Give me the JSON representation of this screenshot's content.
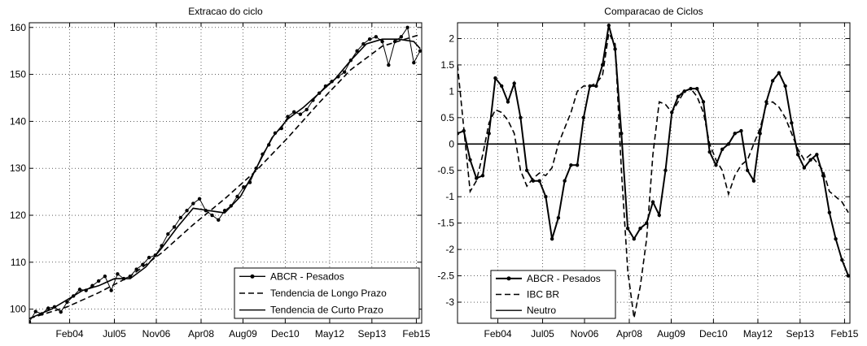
{
  "chart_data": [
    {
      "type": "line",
      "title": "Extracao do ciclo",
      "xlabel": "",
      "ylabel": "",
      "xlim": [
        2002.8,
        2015.25
      ],
      "ylim": [
        97,
        161
      ],
      "grid": true,
      "legend_position": "bottom-right",
      "x_ticks": [
        {
          "x": 2004.08,
          "label": "Feb04"
        },
        {
          "x": 2005.5,
          "label": "Jul05"
        },
        {
          "x": 2006.83,
          "label": "Nov06"
        },
        {
          "x": 2008.25,
          "label": "Apr08"
        },
        {
          "x": 2009.58,
          "label": "Aug09"
        },
        {
          "x": 2010.92,
          "label": "Dec10"
        },
        {
          "x": 2012.33,
          "label": "May12"
        },
        {
          "x": 2013.67,
          "label": "Sep13"
        },
        {
          "x": 2015.08,
          "label": "Feb15"
        }
      ],
      "y_ticks": [
        100,
        110,
        120,
        130,
        140,
        150,
        160
      ],
      "series": [
        {
          "name": "ABCR - Pesados",
          "style": "solid-dots",
          "x": [
            2002.8,
            2003.0,
            2003.2,
            2003.4,
            2003.6,
            2003.8,
            2004.0,
            2004.2,
            2004.4,
            2004.6,
            2004.8,
            2005.0,
            2005.2,
            2005.4,
            2005.6,
            2005.8,
            2006.0,
            2006.2,
            2006.4,
            2006.6,
            2006.8,
            2007.0,
            2007.2,
            2007.4,
            2007.6,
            2007.8,
            2008.0,
            2008.2,
            2008.4,
            2008.6,
            2008.8,
            2009.0,
            2009.2,
            2009.4,
            2009.6,
            2009.8,
            2010.0,
            2010.2,
            2010.4,
            2010.6,
            2010.8,
            2011.0,
            2011.2,
            2011.4,
            2011.6,
            2011.8,
            2012.0,
            2012.2,
            2012.4,
            2012.6,
            2012.8,
            2013.0,
            2013.2,
            2013.4,
            2013.6,
            2013.8,
            2014.0,
            2014.2,
            2014.4,
            2014.6,
            2014.8,
            2015.0,
            2015.2
          ],
          "y": [
            97.3,
            99.5,
            99.0,
            100.2,
            100.5,
            99.4,
            101.5,
            102.8,
            104.2,
            104.0,
            105.0,
            106.0,
            107.0,
            104.0,
            107.5,
            106.5,
            107.0,
            108.5,
            109.5,
            111.0,
            111.5,
            113.5,
            116.0,
            117.5,
            119.5,
            121.0,
            122.5,
            123.5,
            121.0,
            120.0,
            119.0,
            121.0,
            122.0,
            124.0,
            126.0,
            127.0,
            130.0,
            133.0,
            135.0,
            137.5,
            138.5,
            141.0,
            142.0,
            141.5,
            142.5,
            144.5,
            146.0,
            147.5,
            148.5,
            149.5,
            150.5,
            153.0,
            155.0,
            156.5,
            157.5,
            158.0,
            157.0,
            152.0,
            157.0,
            158.0,
            160.0,
            152.5,
            155.0
          ]
        },
        {
          "name": "Tendencia de Longo Prazo",
          "style": "dashed",
          "x": [
            2002.8,
            2004.0,
            2005.0,
            2006.0,
            2007.0,
            2008.0,
            2009.0,
            2010.0,
            2011.0,
            2012.0,
            2013.0,
            2014.0,
            2015.2
          ],
          "y": [
            98.0,
            100.5,
            103.5,
            107.0,
            112.0,
            118.0,
            123.5,
            129.5,
            136.5,
            144.0,
            151.0,
            156.0,
            158.5
          ]
        },
        {
          "name": "Tendencia de Curto Prazo",
          "style": "solid",
          "x": [
            2002.8,
            2003.5,
            2004.0,
            2004.5,
            2005.0,
            2005.5,
            2006.0,
            2006.5,
            2007.0,
            2007.5,
            2008.0,
            2008.5,
            2009.0,
            2009.5,
            2010.0,
            2010.5,
            2011.0,
            2011.5,
            2012.0,
            2012.5,
            2013.0,
            2013.5,
            2014.0,
            2014.5,
            2015.0,
            2015.2
          ],
          "y": [
            98.0,
            100.0,
            102.0,
            104.0,
            105.0,
            106.5,
            106.5,
            109.0,
            113.0,
            117.5,
            121.5,
            121.0,
            120.5,
            124.0,
            130.0,
            136.5,
            140.5,
            143.0,
            146.0,
            149.0,
            153.0,
            156.5,
            157.5,
            157.5,
            157.0,
            155.5
          ]
        }
      ]
    },
    {
      "type": "line",
      "title": "Comparacao de Ciclos",
      "xlabel": "",
      "ylabel": "",
      "xlim": [
        2002.8,
        2015.25
      ],
      "ylim": [
        -3.4,
        2.3
      ],
      "grid": true,
      "legend_position": "bottom-left",
      "x_ticks": [
        {
          "x": 2004.08,
          "label": "Feb04"
        },
        {
          "x": 2005.5,
          "label": "Jul05"
        },
        {
          "x": 2006.83,
          "label": "Nov06"
        },
        {
          "x": 2008.25,
          "label": "Apr08"
        },
        {
          "x": 2009.58,
          "label": "Aug09"
        },
        {
          "x": 2010.92,
          "label": "Dec10"
        },
        {
          "x": 2012.33,
          "label": "May12"
        },
        {
          "x": 2013.67,
          "label": "Sep13"
        },
        {
          "x": 2015.08,
          "label": "Feb15"
        }
      ],
      "y_ticks": [
        -3,
        -2.5,
        -2,
        -1.5,
        -1,
        -0.5,
        0,
        0.5,
        1,
        1.5,
        2
      ],
      "y_tick_labels": [
        "-3",
        "-2.5",
        "-2",
        "-1.5",
        "-1",
        "-0.5",
        "0",
        "0.5",
        "1",
        "1.5",
        "2"
      ],
      "series": [
        {
          "name": "ABCR - Pesados",
          "style": "solid-dots",
          "x": [
            2002.8,
            2003.0,
            2003.2,
            2003.4,
            2003.6,
            2003.8,
            2004.0,
            2004.2,
            2004.4,
            2004.6,
            2004.8,
            2005.0,
            2005.2,
            2005.4,
            2005.6,
            2005.8,
            2006.0,
            2006.2,
            2006.4,
            2006.6,
            2006.8,
            2007.0,
            2007.2,
            2007.4,
            2007.6,
            2007.8,
            2008.0,
            2008.2,
            2008.4,
            2008.6,
            2008.8,
            2009.0,
            2009.2,
            2009.4,
            2009.6,
            2009.8,
            2010.0,
            2010.2,
            2010.4,
            2010.6,
            2010.8,
            2011.0,
            2011.2,
            2011.4,
            2011.6,
            2011.8,
            2012.0,
            2012.2,
            2012.4,
            2012.6,
            2012.8,
            2013.0,
            2013.2,
            2013.4,
            2013.6,
            2013.8,
            2014.0,
            2014.2,
            2014.4,
            2014.6,
            2014.8,
            2015.0,
            2015.2
          ],
          "y": [
            0.2,
            0.25,
            -0.3,
            -0.65,
            -0.6,
            0.2,
            1.25,
            1.1,
            0.8,
            1.15,
            0.5,
            -0.5,
            -0.7,
            -0.7,
            -1.0,
            -1.8,
            -1.4,
            -0.7,
            -0.4,
            -0.4,
            0.5,
            1.1,
            1.1,
            1.5,
            2.25,
            1.8,
            0.2,
            -1.6,
            -1.8,
            -1.6,
            -1.5,
            -1.1,
            -1.35,
            -0.5,
            0.6,
            0.9,
            1.0,
            1.05,
            1.05,
            0.8,
            -0.15,
            -0.4,
            -0.1,
            0.0,
            0.2,
            0.25,
            -0.5,
            -0.7,
            0.2,
            0.8,
            1.2,
            1.35,
            1.1,
            0.4,
            -0.2,
            -0.45,
            -0.3,
            -0.2,
            -0.6,
            -1.3,
            -1.8,
            -2.2,
            -2.5
          ]
        },
        {
          "name": "IBC BR",
          "style": "dashed",
          "x": [
            2002.8,
            2003.0,
            2003.2,
            2003.4,
            2003.6,
            2003.8,
            2004.0,
            2004.2,
            2004.4,
            2004.6,
            2004.8,
            2005.0,
            2005.2,
            2005.4,
            2005.6,
            2005.8,
            2006.0,
            2006.2,
            2006.4,
            2006.6,
            2006.8,
            2007.0,
            2007.2,
            2007.4,
            2007.6,
            2007.8,
            2008.0,
            2008.2,
            2008.4,
            2008.6,
            2008.8,
            2009.0,
            2009.2,
            2009.4,
            2009.6,
            2009.8,
            2010.0,
            2010.2,
            2010.4,
            2010.6,
            2010.8,
            2011.0,
            2011.2,
            2011.4,
            2011.6,
            2011.8,
            2012.0,
            2012.2,
            2012.4,
            2012.6,
            2012.8,
            2013.0,
            2013.2,
            2013.4,
            2013.6,
            2013.8,
            2014.0,
            2014.2,
            2014.4,
            2014.6,
            2014.8,
            2015.0,
            2015.2
          ],
          "y": [
            1.5,
            0.3,
            -0.9,
            -0.7,
            -0.2,
            0.4,
            0.65,
            0.6,
            0.45,
            0.2,
            -0.5,
            -0.8,
            -0.65,
            -0.55,
            -0.6,
            -0.45,
            0.0,
            0.3,
            0.6,
            1.0,
            1.1,
            1.1,
            1.15,
            1.3,
            2.1,
            1.9,
            -0.5,
            -2.4,
            -3.3,
            -2.7,
            -1.8,
            -0.2,
            0.8,
            0.75,
            0.6,
            0.8,
            1.0,
            1.05,
            0.9,
            0.6,
            0.0,
            -0.3,
            -0.5,
            -0.95,
            -0.6,
            -0.4,
            -0.3,
            0.0,
            0.3,
            0.75,
            0.8,
            0.7,
            0.5,
            0.2,
            -0.1,
            -0.3,
            -0.2,
            -0.35,
            -0.5,
            -0.9,
            -1.0,
            -1.1,
            -1.3
          ]
        },
        {
          "name": "Neutro",
          "style": "solid",
          "x": [
            2002.8,
            2015.25
          ],
          "y": [
            0,
            0
          ]
        }
      ]
    }
  ]
}
